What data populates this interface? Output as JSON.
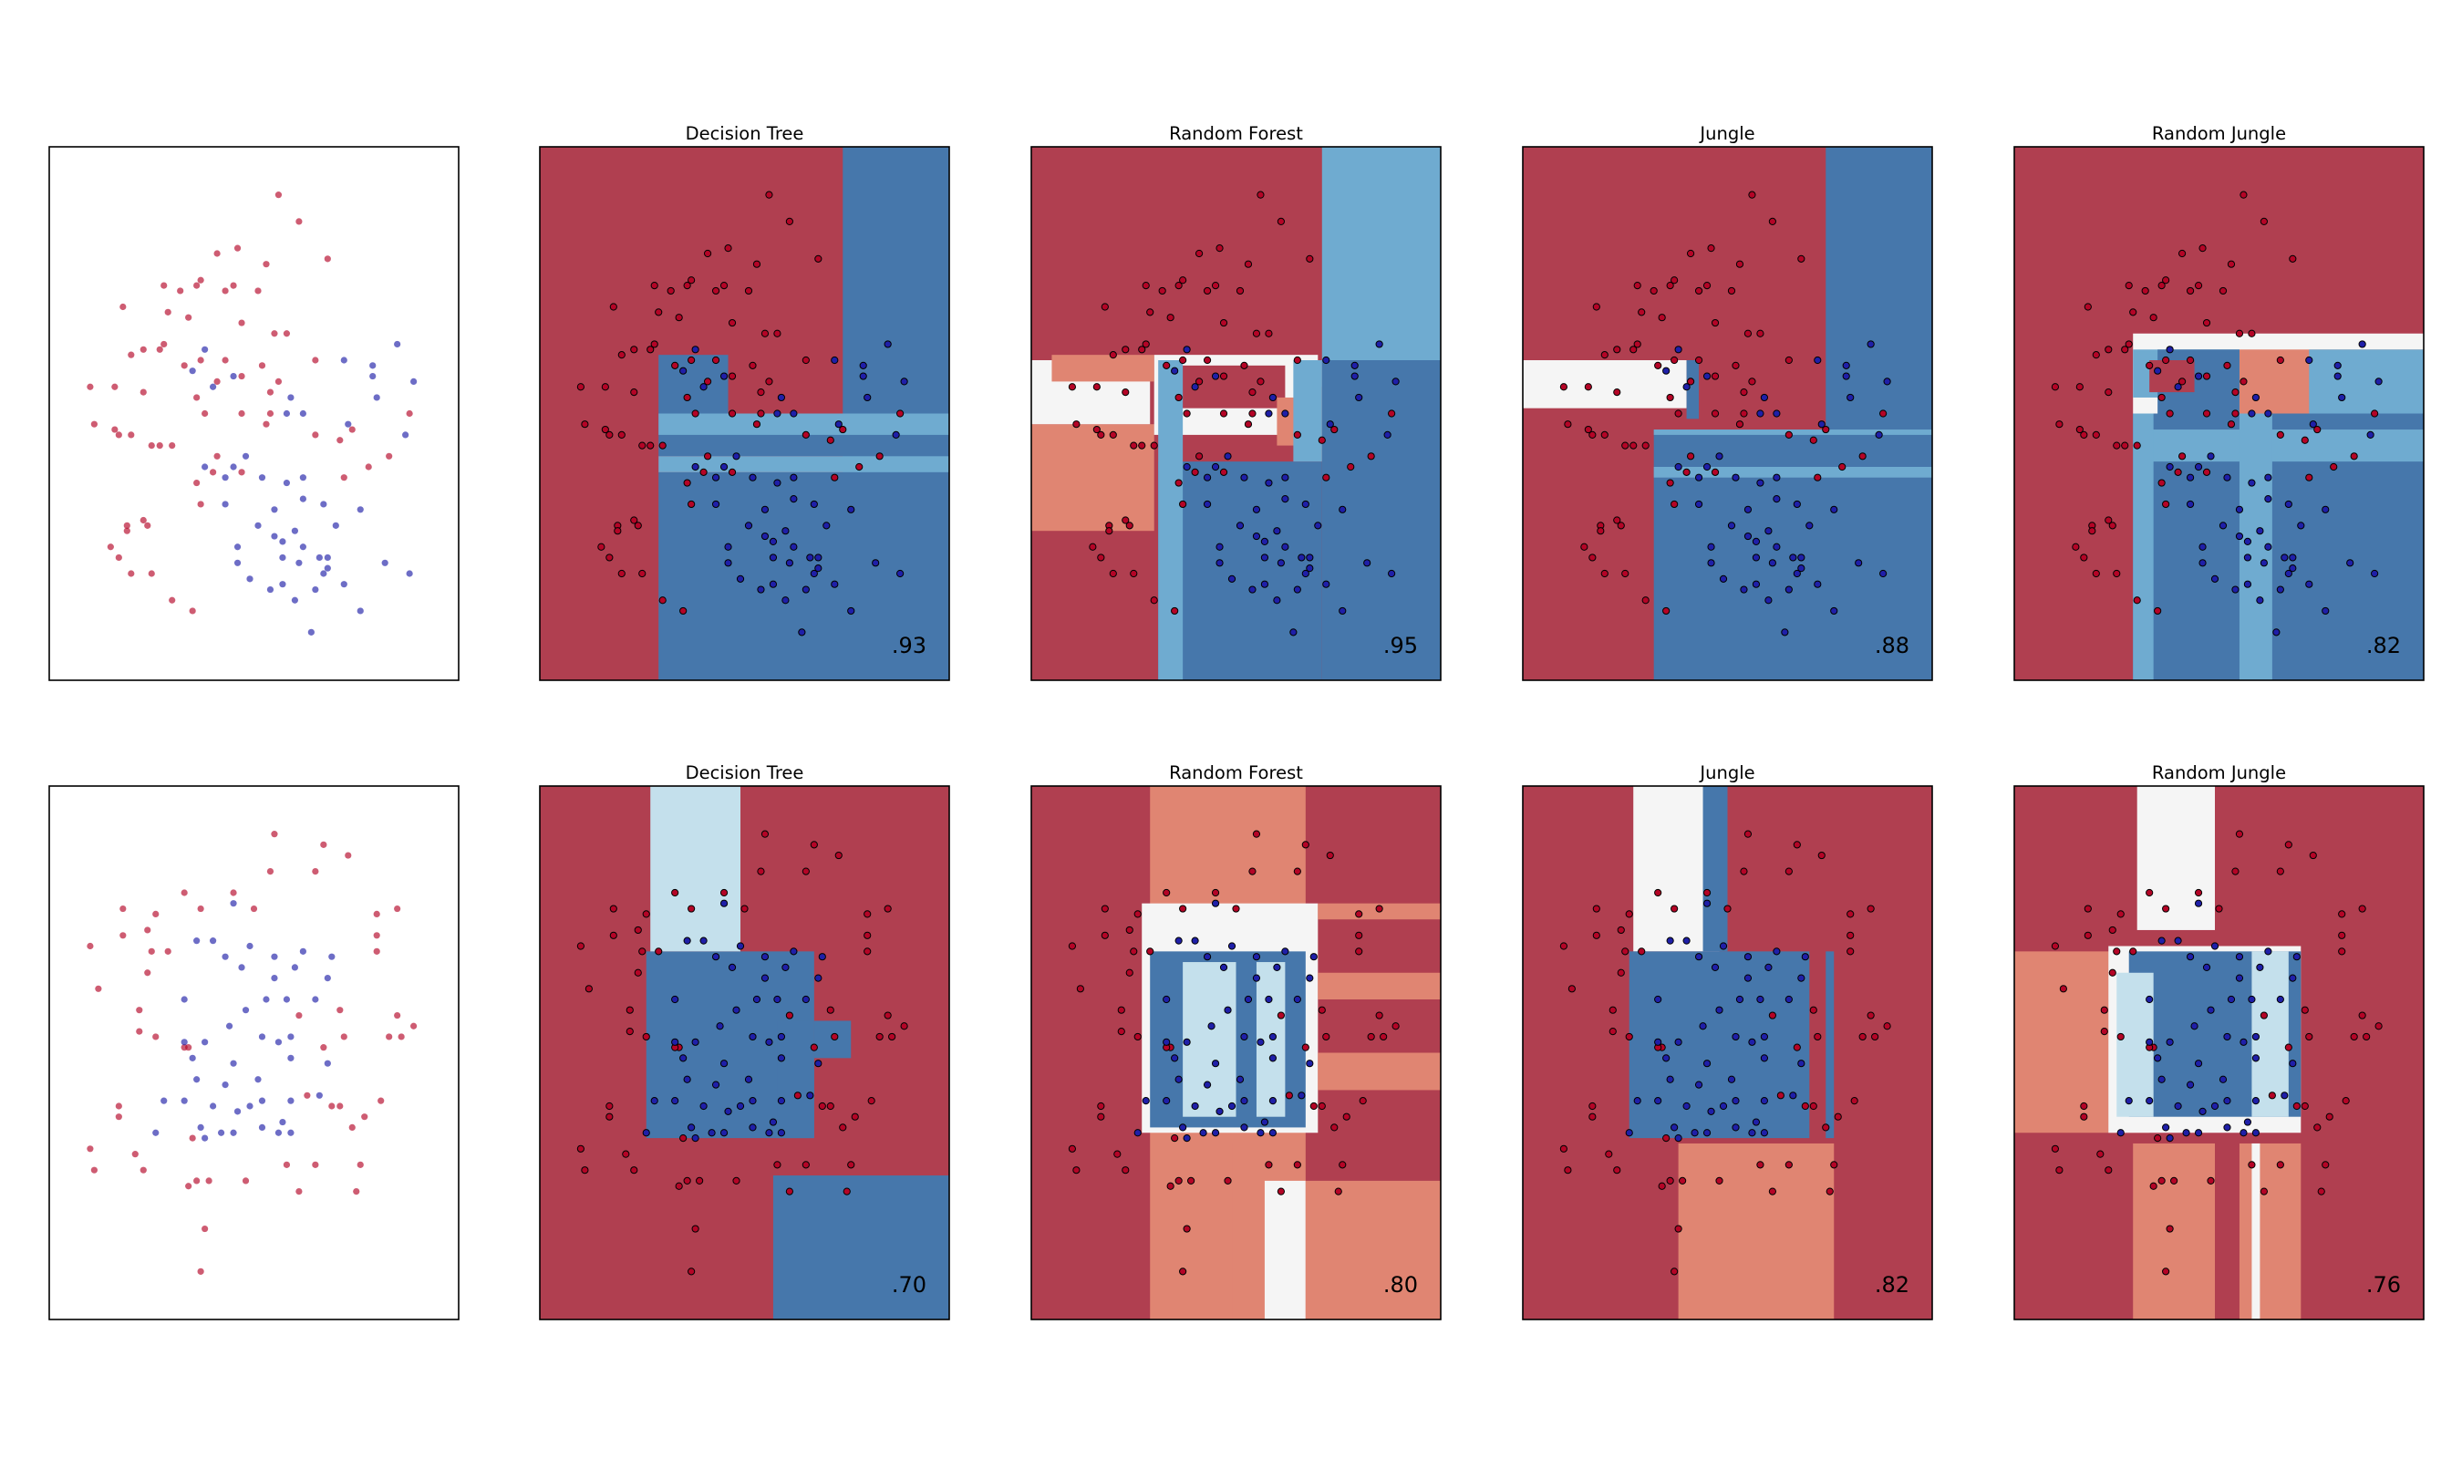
{
  "figure": {
    "rows": [
      {
        "dataset": "dataset-1",
        "panels": [
          {
            "id": "input",
            "title": "",
            "score": ""
          },
          {
            "id": "decision-tree",
            "title": "Decision Tree",
            "score": ".93"
          },
          {
            "id": "random-forest",
            "title": "Random Forest",
            "score": ".95"
          },
          {
            "id": "jungle",
            "title": "Jungle",
            "score": ".88"
          },
          {
            "id": "random-jungle",
            "title": "Random Jungle",
            "score": ".82"
          }
        ]
      },
      {
        "dataset": "dataset-2",
        "panels": [
          {
            "id": "input",
            "title": "",
            "score": ""
          },
          {
            "id": "decision-tree",
            "title": "Decision Tree",
            "score": ".70"
          },
          {
            "id": "random-forest",
            "title": "Random Forest",
            "score": ".80"
          },
          {
            "id": "jungle",
            "title": "Jungle",
            "score": ".82"
          },
          {
            "id": "random-jungle",
            "title": "Random Jungle",
            "score": ".76"
          }
        ]
      }
    ]
  },
  "chart_data": [
    {
      "type": "scatter",
      "dataset": "dataset-1",
      "xlim": [
        0,
        1
      ],
      "ylim": [
        0,
        1
      ],
      "colors": {
        "class_red": "#b40426",
        "class_blue": "#1f1fa8",
        "region_red": "#b03f50",
        "region_blue": "#4677ab",
        "region_light_blue": "#6fabd0",
        "region_salmon": "#e08572",
        "region_white": "#f5f5f5"
      },
      "series": [
        {
          "class": "red",
          "points": [
            [
              0.56,
              0.91
            ],
            [
              0.61,
              0.86
            ],
            [
              0.46,
              0.81
            ],
            [
              0.41,
              0.8
            ],
            [
              0.68,
              0.79
            ],
            [
              0.53,
              0.78
            ],
            [
              0.37,
              0.75
            ],
            [
              0.45,
              0.74
            ],
            [
              0.28,
              0.74
            ],
            [
              0.32,
              0.73
            ],
            [
              0.36,
              0.74
            ],
            [
              0.43,
              0.73
            ],
            [
              0.51,
              0.73
            ],
            [
              0.18,
              0.7
            ],
            [
              0.29,
              0.69
            ],
            [
              0.34,
              0.68
            ],
            [
              0.47,
              0.67
            ],
            [
              0.55,
              0.65
            ],
            [
              0.58,
              0.65
            ],
            [
              0.28,
              0.63
            ],
            [
              0.27,
              0.62
            ],
            [
              0.23,
              0.62
            ],
            [
              0.2,
              0.61
            ],
            [
              0.37,
              0.6
            ],
            [
              0.43,
              0.6
            ],
            [
              0.33,
              0.59
            ],
            [
              0.52,
              0.59
            ],
            [
              0.65,
              0.6
            ],
            [
              0.47,
              0.57
            ],
            [
              0.56,
              0.56
            ],
            [
              0.41,
              0.56
            ],
            [
              0.54,
              0.54
            ],
            [
              0.36,
              0.53
            ],
            [
              0.1,
              0.55
            ],
            [
              0.16,
              0.55
            ],
            [
              0.23,
              0.54
            ],
            [
              0.47,
              0.5
            ],
            [
              0.54,
              0.5
            ],
            [
              0.38,
              0.5
            ],
            [
              0.53,
              0.48
            ],
            [
              0.11,
              0.48
            ],
            [
              0.16,
              0.47
            ],
            [
              0.17,
              0.46
            ],
            [
              0.2,
              0.46
            ],
            [
              0.25,
              0.44
            ],
            [
              0.27,
              0.44
            ],
            [
              0.3,
              0.44
            ],
            [
              0.41,
              0.42
            ],
            [
              0.4,
              0.39
            ],
            [
              0.47,
              0.39
            ],
            [
              0.65,
              0.46
            ],
            [
              0.71,
              0.45
            ],
            [
              0.74,
              0.47
            ],
            [
              0.78,
              0.4
            ],
            [
              0.72,
              0.38
            ],
            [
              0.83,
              0.42
            ],
            [
              0.88,
              0.5
            ],
            [
              0.36,
              0.37
            ],
            [
              0.23,
              0.3
            ],
            [
              0.24,
              0.29
            ],
            [
              0.19,
              0.29
            ],
            [
              0.19,
              0.28
            ],
            [
              0.25,
              0.2
            ],
            [
              0.2,
              0.2
            ],
            [
              0.15,
              0.25
            ],
            [
              0.17,
              0.23
            ],
            [
              0.37,
              0.33
            ],
            [
              0.3,
              0.15
            ],
            [
              0.35,
              0.13
            ]
          ]
        },
        {
          "class": "blue",
          "points": [
            [
              0.38,
              0.62
            ],
            [
              0.35,
              0.58
            ],
            [
              0.45,
              0.57
            ],
            [
              0.4,
              0.55
            ],
            [
              0.85,
              0.63
            ],
            [
              0.89,
              0.56
            ],
            [
              0.72,
              0.6
            ],
            [
              0.79,
              0.59
            ],
            [
              0.79,
              0.57
            ],
            [
              0.59,
              0.53
            ],
            [
              0.8,
              0.53
            ],
            [
              0.58,
              0.5
            ],
            [
              0.62,
              0.5
            ],
            [
              0.73,
              0.48
            ],
            [
              0.87,
              0.46
            ],
            [
              0.48,
              0.42
            ],
            [
              0.45,
              0.4
            ],
            [
              0.38,
              0.4
            ],
            [
              0.43,
              0.38
            ],
            [
              0.52,
              0.38
            ],
            [
              0.62,
              0.38
            ],
            [
              0.58,
              0.37
            ],
            [
              0.67,
              0.33
            ],
            [
              0.55,
              0.32
            ],
            [
              0.51,
              0.29
            ],
            [
              0.62,
              0.34
            ],
            [
              0.43,
              0.33
            ],
            [
              0.6,
              0.28
            ],
            [
              0.55,
              0.27
            ],
            [
              0.7,
              0.29
            ],
            [
              0.76,
              0.32
            ],
            [
              0.57,
              0.26
            ],
            [
              0.46,
              0.25
            ],
            [
              0.62,
              0.25
            ],
            [
              0.66,
              0.23
            ],
            [
              0.68,
              0.23
            ],
            [
              0.57,
              0.23
            ],
            [
              0.61,
              0.22
            ],
            [
              0.68,
              0.21
            ],
            [
              0.46,
              0.22
            ],
            [
              0.82,
              0.22
            ],
            [
              0.49,
              0.19
            ],
            [
              0.57,
              0.18
            ],
            [
              0.65,
              0.17
            ],
            [
              0.6,
              0.15
            ],
            [
              0.76,
              0.13
            ],
            [
              0.54,
              0.17
            ],
            [
              0.67,
              0.2
            ],
            [
              0.72,
              0.18
            ],
            [
              0.88,
              0.2
            ],
            [
              0.64,
              0.09
            ]
          ]
        }
      ],
      "classifiers": [
        {
          "name": "Decision Tree",
          "score": ".93"
        },
        {
          "name": "Random Forest",
          "score": ".95"
        },
        {
          "name": "Jungle",
          "score": ".88"
        },
        {
          "name": "Random Jungle",
          "score": ".82"
        }
      ]
    },
    {
      "type": "scatter",
      "dataset": "dataset-2",
      "xlim": [
        0,
        1
      ],
      "ylim": [
        0,
        1
      ],
      "colors": {
        "class_red": "#b40426",
        "class_blue": "#1f1fa8",
        "region_red": "#b03f50",
        "region_blue": "#4677ab",
        "region_light_blue": "#c4e0ec",
        "region_salmon": "#e08572",
        "region_white": "#f5f5f5"
      },
      "series": [
        {
          "class": "red",
          "points": [
            [
              0.55,
              0.91
            ],
            [
              0.67,
              0.89
            ],
            [
              0.73,
              0.87
            ],
            [
              0.54,
              0.84
            ],
            [
              0.65,
              0.84
            ],
            [
              0.45,
              0.8
            ],
            [
              0.18,
              0.77
            ],
            [
              0.37,
              0.77
            ],
            [
              0.33,
              0.8
            ],
            [
              0.26,
              0.76
            ],
            [
              0.5,
              0.77
            ],
            [
              0.8,
              0.76
            ],
            [
              0.85,
              0.77
            ],
            [
              0.18,
              0.72
            ],
            [
              0.24,
              0.73
            ],
            [
              0.1,
              0.7
            ],
            [
              0.25,
              0.69
            ],
            [
              0.29,
              0.69
            ],
            [
              0.8,
              0.72
            ],
            [
              0.8,
              0.69
            ],
            [
              0.12,
              0.62
            ],
            [
              0.24,
              0.65
            ],
            [
              0.22,
              0.58
            ],
            [
              0.61,
              0.57
            ],
            [
              0.71,
              0.58
            ],
            [
              0.85,
              0.57
            ],
            [
              0.89,
              0.55
            ],
            [
              0.22,
              0.54
            ],
            [
              0.26,
              0.53
            ],
            [
              0.34,
              0.51
            ],
            [
              0.72,
              0.53
            ],
            [
              0.67,
              0.51
            ],
            [
              0.83,
              0.53
            ],
            [
              0.86,
              0.53
            ],
            [
              0.33,
              0.51
            ],
            [
              0.17,
              0.4
            ],
            [
              0.17,
              0.38
            ],
            [
              0.63,
              0.42
            ],
            [
              0.69,
              0.4
            ],
            [
              0.71,
              0.4
            ],
            [
              0.77,
              0.38
            ],
            [
              0.74,
              0.36
            ],
            [
              0.81,
              0.41
            ],
            [
              0.1,
              0.32
            ],
            [
              0.21,
              0.31
            ],
            [
              0.11,
              0.28
            ],
            [
              0.35,
              0.34
            ],
            [
              0.23,
              0.28
            ],
            [
              0.34,
              0.25
            ],
            [
              0.36,
              0.26
            ],
            [
              0.39,
              0.26
            ],
            [
              0.48,
              0.26
            ],
            [
              0.65,
              0.29
            ],
            [
              0.58,
              0.29
            ],
            [
              0.61,
              0.24
            ],
            [
              0.75,
              0.24
            ],
            [
              0.76,
              0.29
            ],
            [
              0.38,
              0.17
            ],
            [
              0.37,
              0.09
            ]
          ]
        },
        {
          "class": "blue",
          "points": [
            [
              0.45,
              0.78
            ],
            [
              0.36,
              0.71
            ],
            [
              0.4,
              0.71
            ],
            [
              0.49,
              0.7
            ],
            [
              0.43,
              0.68
            ],
            [
              0.55,
              0.68
            ],
            [
              0.62,
              0.69
            ],
            [
              0.69,
              0.68
            ],
            [
              0.47,
              0.66
            ],
            [
              0.55,
              0.64
            ],
            [
              0.6,
              0.66
            ],
            [
              0.68,
              0.64
            ],
            [
              0.33,
              0.6
            ],
            [
              0.53,
              0.6
            ],
            [
              0.58,
              0.6
            ],
            [
              0.65,
              0.6
            ],
            [
              0.48,
              0.58
            ],
            [
              0.44,
              0.55
            ],
            [
              0.52,
              0.53
            ],
            [
              0.59,
              0.53
            ],
            [
              0.33,
              0.52
            ],
            [
              0.38,
              0.52
            ],
            [
              0.35,
              0.49
            ],
            [
              0.45,
              0.48
            ],
            [
              0.59,
              0.49
            ],
            [
              0.68,
              0.48
            ],
            [
              0.36,
              0.45
            ],
            [
              0.43,
              0.44
            ],
            [
              0.28,
              0.41
            ],
            [
              0.33,
              0.41
            ],
            [
              0.52,
              0.41
            ],
            [
              0.59,
              0.41
            ],
            [
              0.66,
              0.42
            ],
            [
              0.4,
              0.4
            ],
            [
              0.46,
              0.39
            ],
            [
              0.52,
              0.36
            ],
            [
              0.57,
              0.37
            ],
            [
              0.56,
              0.35
            ],
            [
              0.59,
              0.35
            ],
            [
              0.42,
              0.35
            ],
            [
              0.26,
              0.35
            ],
            [
              0.38,
              0.34
            ],
            [
              0.37,
              0.36
            ],
            [
              0.45,
              0.35
            ],
            [
              0.49,
              0.4
            ],
            [
              0.56,
              0.52
            ],
            [
              0.51,
              0.45
            ]
          ]
        }
      ],
      "classifiers": [
        {
          "name": "Decision Tree",
          "score": ".70"
        },
        {
          "name": "Random Forest",
          "score": ".80"
        },
        {
          "name": "Jungle",
          "score": ".82"
        },
        {
          "name": "Random Jungle",
          "score": ".76"
        }
      ]
    }
  ]
}
